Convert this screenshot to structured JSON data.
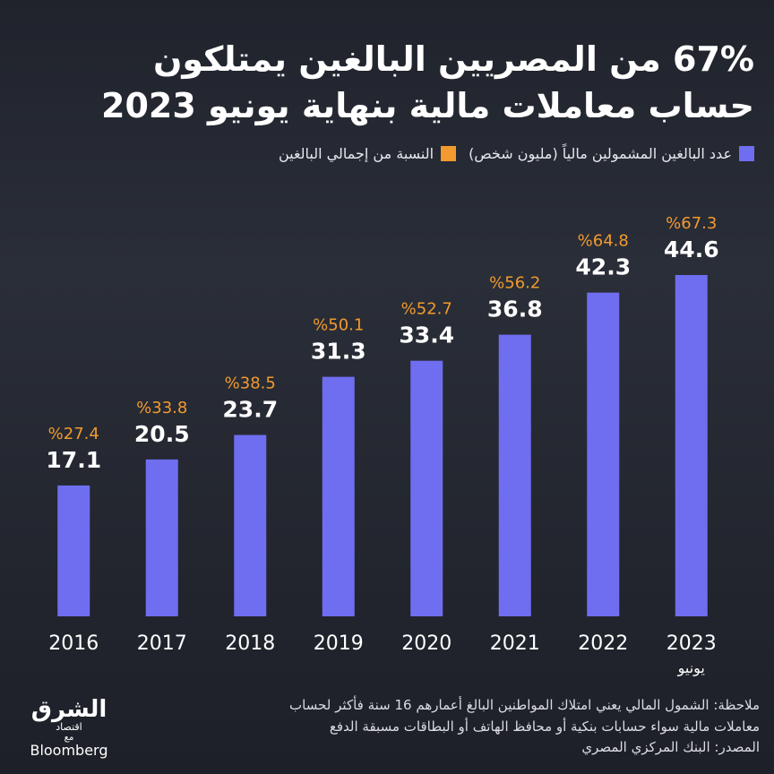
{
  "chart_data": {
    "type": "bar",
    "title": [
      "67% من المصريين البالغين يمتلكون",
      "حساب معاملات مالية بنهاية يونيو 2023"
    ],
    "categories": [
      "2016",
      "2017",
      "2018",
      "2019",
      "2020",
      "2021",
      "2022",
      "2023"
    ],
    "category_sublabels": [
      null,
      null,
      null,
      null,
      null,
      null,
      null,
      "يونيو"
    ],
    "series": [
      {
        "name": "عدد البالغين المشمولين مالياً (مليون شخص)",
        "color": "#6f6ef0",
        "values": [
          17.1,
          20.5,
          23.7,
          31.3,
          33.4,
          36.8,
          42.3,
          44.6
        ]
      },
      {
        "name": "النسبة من إجمالي البالغين",
        "color": "#f29a2e",
        "values": [
          27.4,
          33.8,
          38.5,
          50.1,
          52.7,
          56.2,
          64.8,
          67.3
        ],
        "value_labels": [
          "%27.4",
          "%33.8",
          "%38.5",
          "%50.1",
          "%52.7",
          "%56.2",
          "%64.8",
          "%67.3"
        ]
      }
    ],
    "notes": [
      "ملاحظة: الشمول المالي يعني امتلاك المواطنين البالغ أعمارهم 16 سنة فأكثر لحساب",
      "معاملات مالية سواء حسابات بنكية أو محافظ الهاتف أو البطاقات مسبقة الدفع",
      "المصدر: البنك المركزي المصري"
    ],
    "logo": {
      "name": "الشرق",
      "sub": "اقتصاد",
      "with": "مع",
      "partner": "Bloomberg"
    }
  }
}
